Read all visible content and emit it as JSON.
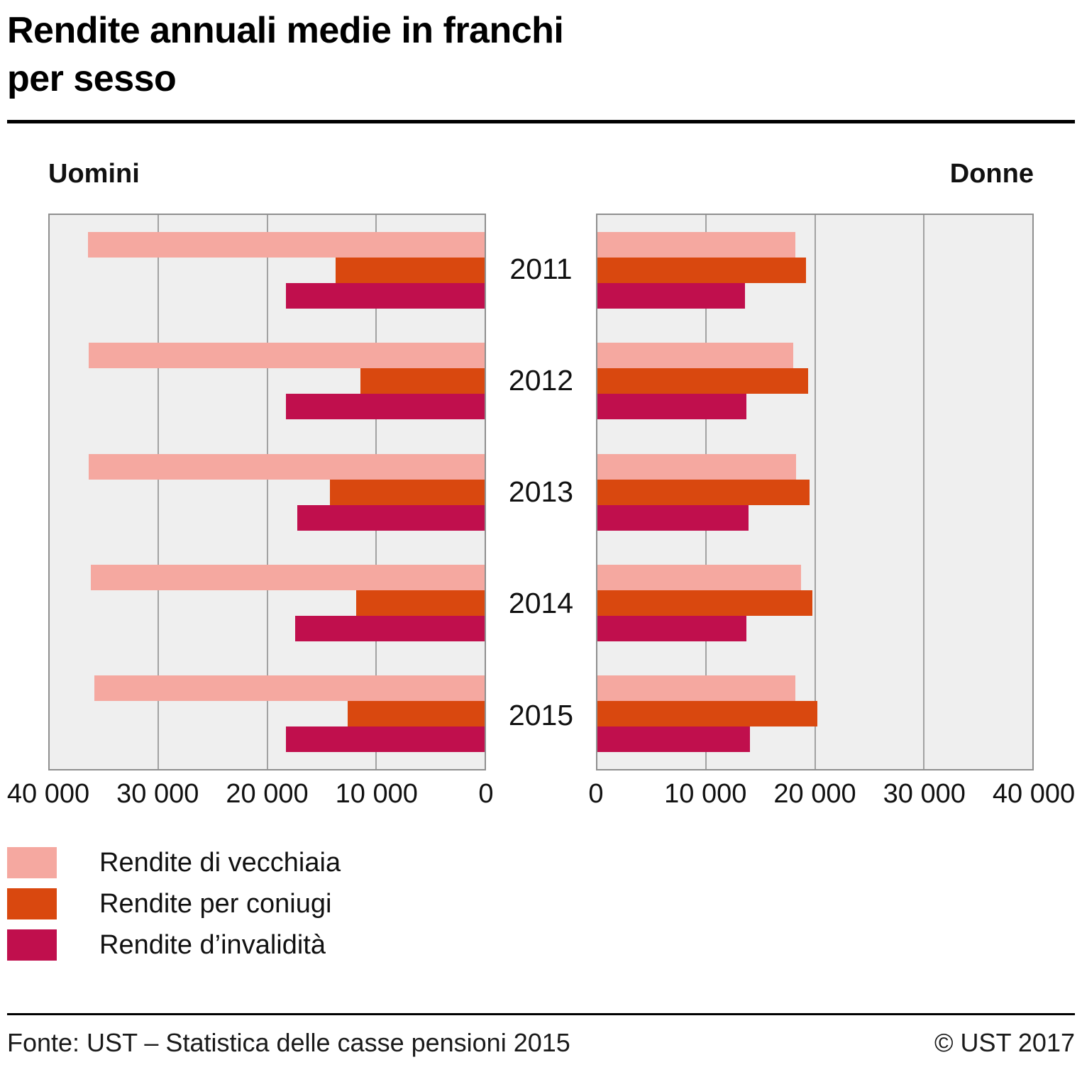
{
  "title": {
    "line1": "Rendite annuali medie in franchi",
    "line2": "per sesso"
  },
  "panels": {
    "left_label": "Uomini",
    "right_label": "Donne"
  },
  "footer": {
    "source": "Fonte: UST – Statistica delle casse pensioni 2015",
    "copyright": "© UST 2017"
  },
  "colors": {
    "plot_background": "#efefef",
    "grid_line": "#a2a2a2",
    "panel_border": "#8f8f8f",
    "rule": "#000000"
  },
  "chart_data": {
    "type": "bar",
    "orientation": "horizontal",
    "layout": "pyramid-two-panels",
    "title": "Rendite annuali medie in franchi per sesso",
    "panel_labels": [
      "Uomini",
      "Donne"
    ],
    "categories": [
      "2011",
      "2012",
      "2013",
      "2014",
      "2015"
    ],
    "xlim": [
      0,
      40000
    ],
    "grid": true,
    "x_ticks": [
      0,
      10000,
      20000,
      30000,
      40000
    ],
    "x_tick_labels_left": [
      "40 000",
      "30 000",
      "20 000",
      "10 000",
      "0"
    ],
    "x_tick_labels_right": [
      "0",
      "10 000",
      "20 000",
      "30 000",
      "40 000"
    ],
    "series": [
      {
        "name": "Rendite di vecchiaia",
        "color": "#f5a8a0",
        "uomini": [
          36500,
          36400,
          36400,
          36200,
          35900
        ],
        "donne": [
          18200,
          18000,
          18300,
          18700,
          18200
        ]
      },
      {
        "name": "Rendite per coniugi",
        "color": "#d9480f",
        "uomini": [
          13700,
          11400,
          14200,
          11800,
          12600
        ],
        "donne": [
          19200,
          19400,
          19500,
          19800,
          20200
        ]
      },
      {
        "name": "Rendite d’invalidità",
        "color": "#c00f4d",
        "uomini": [
          18300,
          18300,
          17200,
          17400,
          18300
        ],
        "donne": [
          13600,
          13700,
          13900,
          13700,
          14000
        ]
      }
    ]
  }
}
